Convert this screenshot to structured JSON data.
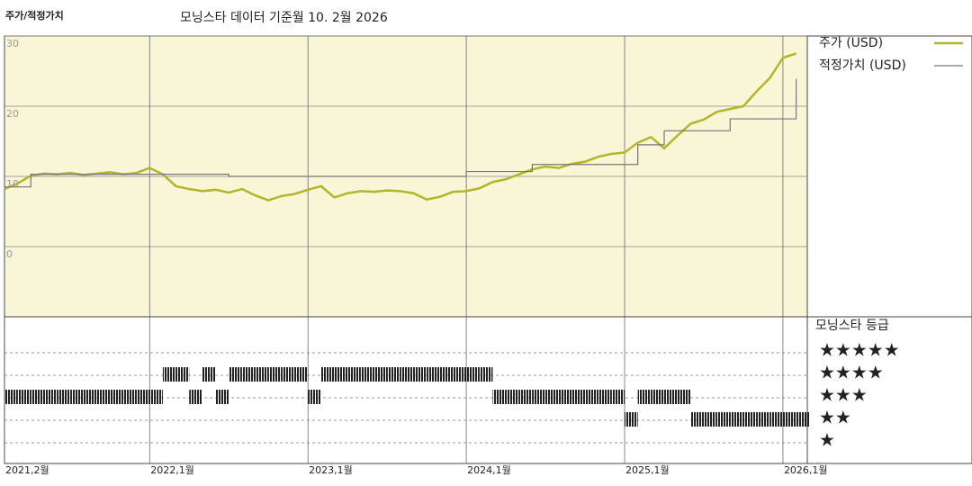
{
  "chart_data": {
    "type": "line",
    "title": "주가/적정가치",
    "subtitle": "모닝스타 데이터 기준월 10. 2월 2026",
    "x": [
      "2021-02",
      "2021-03",
      "2021-04",
      "2021-05",
      "2021-06",
      "2021-07",
      "2021-08",
      "2021-09",
      "2021-10",
      "2021-11",
      "2021-12",
      "2022-01",
      "2022-02",
      "2022-03",
      "2022-04",
      "2022-05",
      "2022-06",
      "2022-07",
      "2022-08",
      "2022-09",
      "2022-10",
      "2022-11",
      "2022-12",
      "2023-01",
      "2023-02",
      "2023-03",
      "2023-04",
      "2023-05",
      "2023-06",
      "2023-07",
      "2023-08",
      "2023-09",
      "2023-10",
      "2023-11",
      "2023-12",
      "2024-01",
      "2024-02",
      "2024-03",
      "2024-04",
      "2024-05",
      "2024-06",
      "2024-07",
      "2024-08",
      "2024-09",
      "2024-10",
      "2024-11",
      "2024-12",
      "2025-01",
      "2025-02",
      "2025-03",
      "2025-04",
      "2025-05",
      "2025-06",
      "2025-07",
      "2025-08",
      "2025-09",
      "2025-10",
      "2025-11",
      "2025-12",
      "2026-01",
      "2026-02"
    ],
    "series": [
      {
        "name": "주가 (USD)",
        "color": "#b3b62a",
        "values": [
          8.2,
          9.0,
          10.1,
          10.4,
          10.3,
          10.5,
          10.2,
          10.4,
          10.6,
          10.3,
          10.5,
          11.2,
          10.3,
          8.6,
          8.2,
          7.9,
          8.1,
          7.7,
          8.2,
          7.3,
          6.6,
          7.2,
          7.5,
          8.1,
          8.6,
          7.0,
          7.6,
          7.9,
          7.8,
          8.0,
          7.9,
          7.6,
          6.7,
          7.1,
          7.8,
          7.9,
          8.3,
          9.2,
          9.6,
          10.3,
          11.0,
          11.4,
          11.2,
          11.8,
          12.1,
          12.8,
          13.2,
          13.4,
          14.8,
          15.6,
          14.0,
          15.8,
          17.5,
          18.1,
          19.2,
          19.6,
          20.0,
          22.1,
          24.0,
          26.9,
          27.5
        ]
      },
      {
        "name": "적정가치 (USD)",
        "color": "#777777",
        "step": true,
        "values": [
          8.5,
          8.5,
          10.3,
          10.3,
          10.3,
          10.3,
          10.3,
          10.3,
          10.3,
          10.3,
          10.3,
          10.3,
          10.3,
          10.3,
          10.3,
          10.3,
          10.3,
          10.0,
          10.0,
          10.0,
          10.0,
          10.0,
          10.0,
          10.0,
          10.0,
          10.0,
          10.0,
          10.0,
          10.0,
          10.0,
          10.0,
          10.0,
          10.0,
          10.0,
          10.0,
          10.7,
          10.7,
          10.7,
          10.7,
          10.7,
          11.7,
          11.7,
          11.7,
          11.7,
          11.7,
          11.7,
          11.7,
          11.7,
          14.5,
          14.5,
          16.5,
          16.5,
          16.5,
          16.5,
          16.5,
          18.2,
          18.2,
          18.2,
          18.2,
          18.2,
          23.9
        ]
      }
    ],
    "ylim": [
      -10,
      30
    ],
    "yticks": [
      0,
      10,
      20,
      30
    ],
    "xticks": [
      {
        "value": "2021-02",
        "label": "2021,2월"
      },
      {
        "value": "2022-01",
        "label": "2022,1월"
      },
      {
        "value": "2023-01",
        "label": "2023,1월"
      },
      {
        "value": "2024-01",
        "label": "2024,1월"
      },
      {
        "value": "2025-01",
        "label": "2025,1월"
      },
      {
        "value": "2026-01",
        "label": "2026,1월"
      }
    ],
    "grid": true,
    "rating": {
      "title": "모닝스타 등급",
      "labels": [
        "★",
        "★★",
        "★★★",
        "★★★★",
        "★★★★★"
      ],
      "values": [
        3,
        3,
        3,
        3,
        3,
        3,
        3,
        3,
        3,
        3,
        3,
        3,
        4,
        4,
        3,
        4,
        3,
        4,
        4,
        4,
        4,
        4,
        4,
        3,
        4,
        4,
        4,
        4,
        4,
        4,
        4,
        4,
        4,
        4,
        4,
        4,
        4,
        3,
        3,
        3,
        3,
        3,
        3,
        3,
        3,
        3,
        3,
        2,
        3,
        3,
        3,
        3,
        2,
        2,
        2,
        2,
        2,
        2,
        2,
        2,
        2
      ]
    }
  }
}
